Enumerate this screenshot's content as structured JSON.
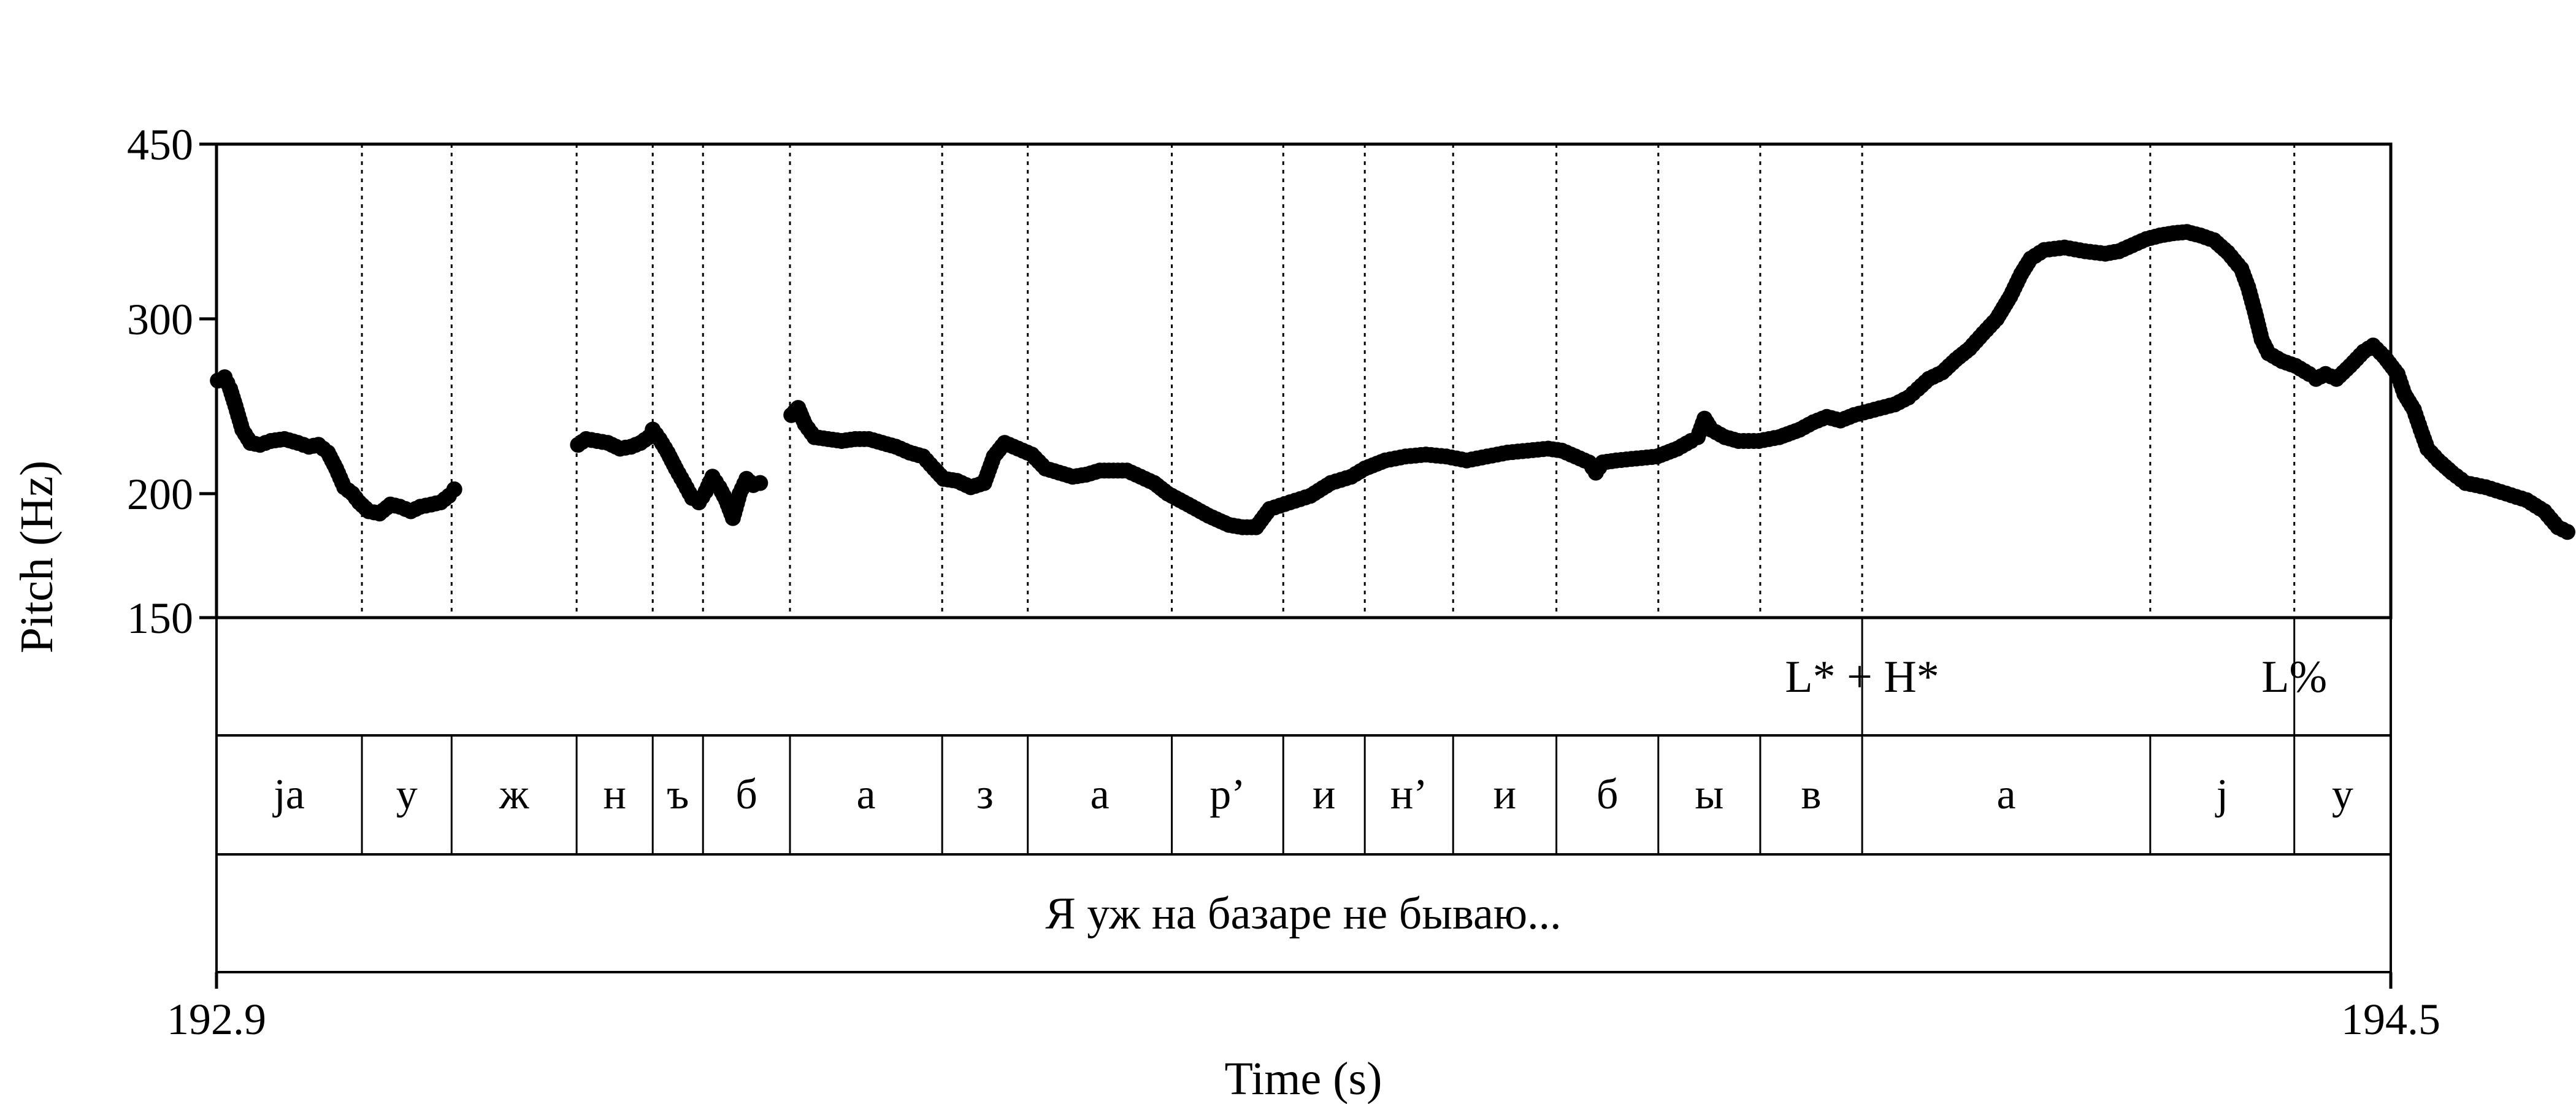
{
  "chart_data": {
    "type": "scatter",
    "title": "",
    "xlabel": "Time (s)",
    "ylabel": "Pitch (Hz)",
    "xlim": [
      192.9,
      194.5
    ],
    "ylim": [
      150,
      450
    ],
    "y_scale": "log",
    "x_ticks": [
      "192.9",
      "194.5"
    ],
    "y_ticks": [
      "450",
      "300",
      "200",
      "150"
    ],
    "y_tick_values": [
      450,
      300,
      200,
      150
    ],
    "segment_boundaries": [
      193.007,
      193.073,
      193.165,
      193.221,
      193.258,
      193.322,
      193.434,
      193.497,
      193.603,
      193.685,
      193.745,
      193.81,
      193.886,
      193.961,
      194.036,
      194.111,
      194.323,
      194.429
    ],
    "segments": [
      "ja",
      "у",
      "ж",
      "н",
      "ъ",
      "б",
      "а",
      "з",
      "а",
      "р’",
      "и",
      "н’",
      "и",
      "б",
      "ы",
      "в",
      "а",
      "j",
      "у"
    ],
    "tone_marks": [
      {
        "time": 194.111,
        "label": "L* + H*"
      },
      {
        "time": 194.429,
        "label": "L%"
      }
    ],
    "sentence": "Я уж на базаре не бываю...",
    "series": [
      {
        "contours": [
          [
            [
              192.901,
              260
            ],
            [
              192.906,
              262
            ],
            [
              192.91,
              255
            ],
            [
              192.914,
              245
            ],
            [
              192.919,
              232
            ],
            [
              192.925,
              225
            ],
            [
              192.932,
              224
            ],
            [
              192.94,
              226
            ],
            [
              192.95,
              227
            ],
            [
              192.96,
              225
            ],
            [
              192.968,
              223
            ],
            [
              192.975,
              224
            ],
            [
              192.982,
              220
            ],
            [
              192.988,
              212
            ],
            [
              192.994,
              203
            ],
            [
              193.0,
              200
            ],
            [
              193.005,
              196
            ],
            [
              193.012,
              192
            ],
            [
              193.02,
              191
            ],
            [
              193.028,
              195
            ],
            [
              193.035,
              194
            ],
            [
              193.043,
              192
            ],
            [
              193.05,
              194
            ],
            [
              193.058,
              195
            ],
            [
              193.065,
              196
            ],
            [
              193.071,
              199
            ],
            [
              193.075,
              202
            ]
          ],
          [
            [
              193.166,
              224
            ],
            [
              193.172,
              227
            ],
            [
              193.18,
              226
            ],
            [
              193.188,
              225
            ],
            [
              193.197,
              222
            ],
            [
              193.205,
              223
            ],
            [
              193.212,
              225
            ],
            [
              193.218,
              228
            ],
            [
              193.221,
              232
            ],
            [
              193.226,
              227
            ],
            [
              193.232,
              220
            ],
            [
              193.238,
              212
            ],
            [
              193.244,
              205
            ],
            [
              193.25,
              198
            ],
            [
              193.255,
              196
            ],
            [
              193.26,
              201
            ],
            [
              193.265,
              208
            ],
            [
              193.27,
              203
            ],
            [
              193.275,
              197
            ],
            [
              193.28,
              189
            ],
            [
              193.285,
              200
            ],
            [
              193.29,
              207
            ],
            [
              193.295,
              204
            ],
            [
              193.3,
              205
            ]
          ],
          [
            [
              193.323,
              240
            ],
            [
              193.328,
              244
            ],
            [
              193.333,
              235
            ],
            [
              193.34,
              228
            ],
            [
              193.35,
              227
            ],
            [
              193.36,
              226
            ],
            [
              193.37,
              227
            ],
            [
              193.38,
              227
            ],
            [
              193.39,
              225
            ],
            [
              193.4,
              223
            ],
            [
              193.41,
              220
            ],
            [
              193.42,
              218
            ],
            [
              193.428,
              212
            ],
            [
              193.435,
              207
            ],
            [
              193.445,
              206
            ],
            [
              193.455,
              203
            ],
            [
              193.465,
              205
            ],
            [
              193.472,
              218
            ],
            [
              193.48,
              225
            ],
            [
              193.49,
              222
            ],
            [
              193.5,
              219
            ],
            [
              193.51,
              212
            ],
            [
              193.52,
              210
            ],
            [
              193.53,
              208
            ],
            [
              193.54,
              209
            ],
            [
              193.55,
              211
            ],
            [
              193.56,
              211
            ],
            [
              193.57,
              211
            ],
            [
              193.58,
              208
            ],
            [
              193.59,
              205
            ],
            [
              193.6,
              200
            ],
            [
              193.615,
              195
            ],
            [
              193.63,
              190
            ],
            [
              193.645,
              186
            ],
            [
              193.655,
              185
            ],
            [
              193.665,
              185
            ],
            [
              193.675,
              193
            ],
            [
              193.69,
              196
            ],
            [
              193.705,
              199
            ],
            [
              193.72,
              205
            ],
            [
              193.735,
              208
            ],
            [
              193.745,
              212
            ],
            [
              193.76,
              216
            ],
            [
              193.775,
              218
            ],
            [
              193.79,
              219
            ],
            [
              193.805,
              218
            ],
            [
              193.82,
              216
            ],
            [
              193.835,
              218
            ],
            [
              193.85,
              220
            ],
            [
              193.865,
              221
            ],
            [
              193.88,
              222
            ],
            [
              193.89,
              221
            ],
            [
              193.9,
              218
            ],
            [
              193.91,
              215
            ],
            [
              193.915,
              210
            ],
            [
              193.92,
              215
            ],
            [
              193.93,
              216
            ],
            [
              193.945,
              217
            ],
            [
              193.96,
              218
            ],
            [
              193.975,
              222
            ],
            [
              193.985,
              226
            ],
            [
              193.99,
              228
            ],
            [
              193.995,
              238
            ],
            [
              194.0,
              232
            ],
            [
              194.01,
              228
            ],
            [
              194.02,
              226
            ],
            [
              194.035,
              226
            ],
            [
              194.05,
              228
            ],
            [
              194.065,
              232
            ],
            [
              194.075,
              236
            ],
            [
              194.085,
              239
            ],
            [
              194.095,
              237
            ],
            [
              194.105,
              240
            ],
            [
              194.12,
              243
            ],
            [
              194.135,
              246
            ],
            [
              194.145,
              250
            ],
            [
              194.152,
              255
            ],
            [
              194.16,
              261
            ],
            [
              194.17,
              265
            ],
            [
              194.18,
              273
            ],
            [
              194.19,
              280
            ],
            [
              194.2,
              290
            ],
            [
              194.21,
              300
            ],
            [
              194.22,
              316
            ],
            [
              194.228,
              333
            ],
            [
              194.235,
              345
            ],
            [
              194.245,
              352
            ],
            [
              194.26,
              354
            ],
            [
              194.275,
              351
            ],
            [
              194.29,
              349
            ],
            [
              194.3,
              351
            ],
            [
              194.31,
              356
            ],
            [
              194.32,
              361
            ],
            [
              194.33,
              364
            ],
            [
              194.34,
              366
            ],
            [
              194.35,
              367
            ],
            [
              194.36,
              364
            ],
            [
              194.37,
              360
            ],
            [
              194.38,
              350
            ],
            [
              194.39,
              337
            ],
            [
              194.395,
              323
            ],
            [
              194.4,
              305
            ],
            [
              194.405,
              286
            ],
            [
              194.41,
              277
            ],
            [
              194.42,
              272
            ],
            [
              194.43,
              269
            ],
            [
              194.44,
              264
            ],
            [
              194.445,
              261
            ],
            [
              194.452,
              264
            ],
            [
              194.46,
              261
            ],
            [
              194.47,
              269
            ],
            [
              194.48,
              278
            ],
            [
              194.487,
              282
            ],
            [
              194.495,
              275
            ],
            [
              194.505,
              264
            ],
            [
              194.51,
              252
            ],
            [
              194.517,
              243
            ],
            [
              194.522,
              232
            ],
            [
              194.527,
              222
            ],
            [
              194.535,
              216
            ],
            [
              194.545,
              210
            ],
            [
              194.555,
              205
            ],
            [
              194.57,
              203
            ],
            [
              194.585,
              200
            ],
            [
              194.6,
              197
            ],
            [
              194.613,
              192
            ],
            [
              194.623,
              185
            ],
            [
              194.63,
              183
            ]
          ]
        ]
      }
    ]
  }
}
